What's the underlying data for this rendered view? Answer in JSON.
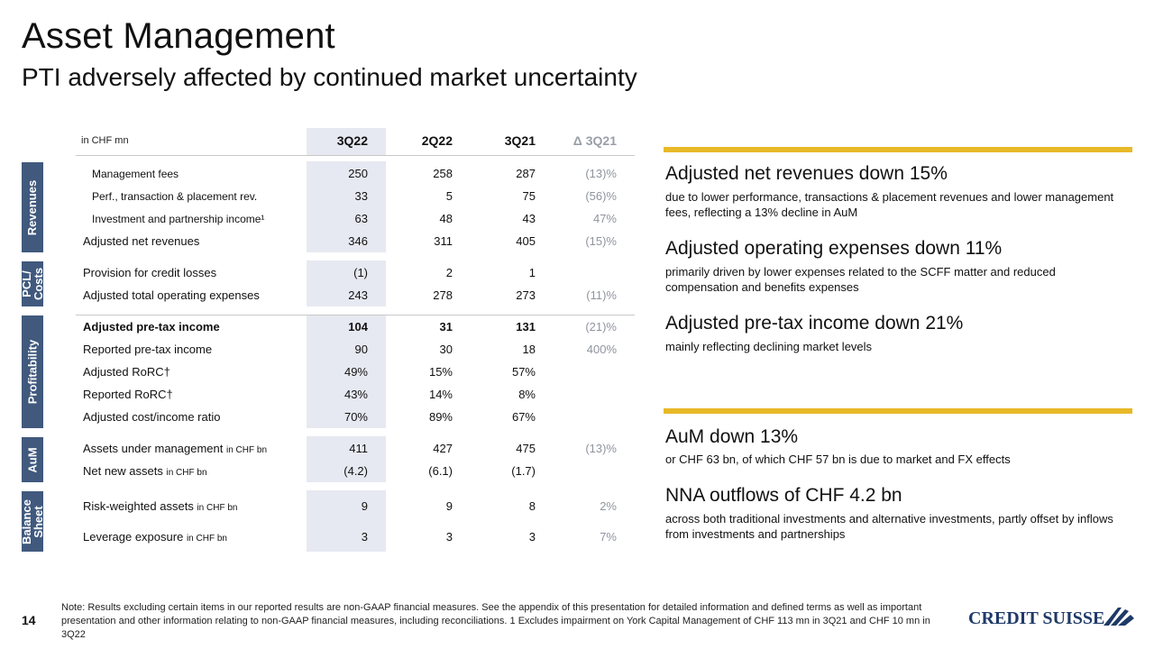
{
  "header": {
    "title": "Asset Management",
    "subtitle": "PTI adversely affected by continued market uncertainty"
  },
  "table": {
    "unit_label": "in CHF mn",
    "columns": [
      "3Q22",
      "2Q22",
      "3Q21",
      "Δ 3Q21"
    ],
    "sections": [
      {
        "label": "Revenues",
        "rows": [
          {
            "label": "Management fees",
            "values": [
              "250",
              "258",
              "287",
              "(13)%"
            ]
          },
          {
            "label": "Perf., transaction & placement rev.",
            "values": [
              "33",
              "5",
              "75",
              "(56)%"
            ]
          },
          {
            "label": "Investment and partnership income¹",
            "values": [
              "63",
              "48",
              "43",
              "47%"
            ]
          },
          {
            "label": "Adjusted net revenues",
            "values": [
              "346",
              "311",
              "405",
              "(15)%"
            ]
          }
        ]
      },
      {
        "label": "PCL/ Costs",
        "rows": [
          {
            "label": "Provision for credit losses",
            "values": [
              "(1)",
              "2",
              "1",
              ""
            ]
          },
          {
            "label": "Adjusted total operating expenses",
            "values": [
              "243",
              "278",
              "273",
              "(11)%"
            ]
          }
        ]
      },
      {
        "label": "Profitability",
        "rows": [
          {
            "label": "Adjusted pre-tax income",
            "values": [
              "104",
              "31",
              "131",
              "(21)%"
            ]
          },
          {
            "label": "Reported pre-tax income",
            "values": [
              "90",
              "30",
              "18",
              "400%"
            ]
          },
          {
            "label": "Adjusted RoRC†",
            "values": [
              "49%",
              "15%",
              "57%",
              ""
            ]
          },
          {
            "label": "Reported RoRC†",
            "values": [
              "43%",
              "14%",
              "8%",
              ""
            ]
          },
          {
            "label": "Adjusted cost/income ratio",
            "values": [
              "70%",
              "89%",
              "67%",
              ""
            ]
          }
        ]
      },
      {
        "label": "AuM",
        "rows": [
          {
            "label": "Assets under management",
            "suffix": "in CHF bn",
            "values": [
              "411",
              "427",
              "475",
              "(13)%"
            ]
          },
          {
            "label": "Net new assets",
            "suffix": "in CHF bn",
            "values": [
              "(4.2)",
              "(6.1)",
              "(1.7)",
              ""
            ]
          }
        ]
      },
      {
        "label": "Balance Sheet",
        "rows": [
          {
            "label": "Risk-weighted assets",
            "suffix": "in CHF bn",
            "values": [
              "9",
              "9",
              "8",
              "2%"
            ]
          },
          {
            "label": "Leverage exposure",
            "suffix": "in CHF bn",
            "values": [
              "3",
              "3",
              "3",
              "7%"
            ]
          }
        ]
      }
    ]
  },
  "highlights": [
    {
      "heading": "Adjusted net revenues down 15%",
      "text": "due to lower performance, transactions & placement revenues and lower management fees, reflecting a 13% decline in AuM"
    },
    {
      "heading": "Adjusted operating expenses down 11%",
      "text": "primarily driven by lower expenses related to the SCFF matter and reduced compensation and benefits expenses"
    },
    {
      "heading": "Adjusted pre-tax income down 21%",
      "text": "mainly reflecting declining market levels"
    },
    {
      "heading": "AuM down 13%",
      "text": "or CHF 63 bn, of which CHF 57 bn is due to market and FX effects"
    },
    {
      "heading": "NNA outflows of CHF 4.2 bn",
      "text": "across both traditional investments and alternative investments, partly offset by inflows from investments and partnerships"
    }
  ],
  "footer": {
    "page_number": "14",
    "note": "Note: Results excluding certain items in our reported results are non-GAAP financial measures. See the appendix of this presentation for detailed information and defined terms as well as important presentation and other information relating to non-GAAP financial measures, including reconciliations.     1 Excludes impairment on York Capital Management of CHF 113 mn in 3Q21 and CHF 10 mn in 3Q22",
    "logo_text": "CREDIT SUISSE"
  },
  "colors": {
    "section_label_bg": "#40597d",
    "highlight_column_bg": "#e6e9f1",
    "accent_bar": "#e8b928",
    "delta_text": "#8f949e"
  }
}
